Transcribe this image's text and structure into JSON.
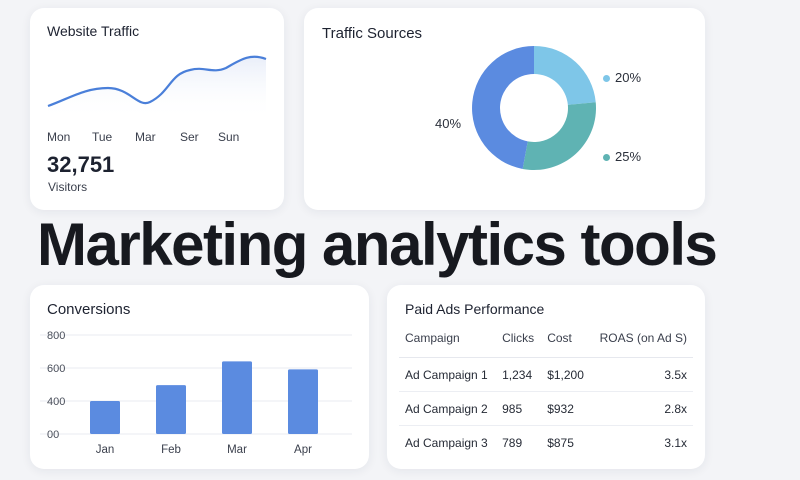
{
  "headline": "Marketing analytics tools",
  "traffic": {
    "title": "Website Traffic",
    "days": [
      "Mon",
      "Tue",
      "Mar",
      "Ser",
      "Sun"
    ],
    "total": "32,751",
    "unit": "Visitors",
    "line_color": "#4a7fd9"
  },
  "sources": {
    "title": "Traffic Sources",
    "slices": [
      {
        "label": "20%",
        "value": 20,
        "color": "#7ec6e8"
      },
      {
        "label": "25%",
        "value": 25,
        "color": "#5fb3b3"
      },
      {
        "label": "40%",
        "value": 40,
        "color": "#5b8be0"
      }
    ]
  },
  "conversions": {
    "title": "Conversions",
    "chart_data": {
      "type": "bar",
      "categories": [
        "Jan",
        "Feb",
        "Mar",
        "Apr"
      ],
      "values": [
        250,
        370,
        550,
        490
      ],
      "yticks": [
        "800",
        "600",
        "400",
        "00"
      ],
      "ylim": [
        0,
        750
      ],
      "color": "#5b8be0"
    }
  },
  "ads": {
    "title": "Paid Ads Performance",
    "columns": [
      "Campaign",
      "Clicks",
      "Cost",
      "ROAS (on Ad S)"
    ],
    "rows": [
      [
        "Ad Campaign 1",
        "1,234",
        "$1,200",
        "3.5x"
      ],
      [
        "Ad Campaign 2",
        "985",
        "$932",
        "2.8x"
      ],
      [
        "Ad Campaign 3",
        "789",
        "$875",
        "3.1x"
      ]
    ]
  }
}
